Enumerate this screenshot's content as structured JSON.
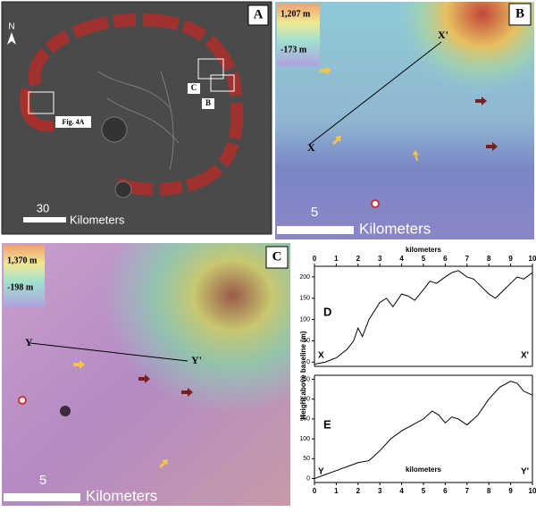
{
  "panels": {
    "a": {
      "label": "A",
      "north": "N",
      "box_c": "C",
      "box_b": "B",
      "fig_ref": "Fig. 4A",
      "scale_value": "30",
      "scale_unit": "Kilometers"
    },
    "b": {
      "label": "B",
      "legend_max": "1,207 m",
      "legend_min": "-173 m",
      "profile_start": "X",
      "profile_end": "X'",
      "scale_value": "5",
      "scale_unit": "Kilometers"
    },
    "c": {
      "label": "C",
      "legend_max": "1,370 m",
      "legend_min": "-198 m",
      "profile_start": "Y",
      "profile_end": "Y'",
      "scale_value": "5",
      "scale_unit": "Kilometers"
    }
  },
  "chart_data": [
    {
      "type": "line",
      "panel_label": "D",
      "start_label": "X",
      "end_label": "X'",
      "xlabel": "kilometers",
      "x_axis_position": "top",
      "color": "#000000",
      "x": [
        0,
        0.5,
        1,
        1.5,
        1.8,
        2.0,
        2.2,
        2.5,
        3.0,
        3.3,
        3.6,
        4.0,
        4.3,
        4.6,
        5.0,
        5.3,
        5.6,
        6.0,
        6.3,
        6.6,
        7.0,
        7.3,
        7.6,
        8.0,
        8.3,
        8.6,
        9.0,
        9.3,
        9.6,
        10
      ],
      "values": [
        -5,
        0,
        10,
        30,
        50,
        80,
        60,
        100,
        140,
        150,
        130,
        160,
        155,
        145,
        170,
        190,
        185,
        200,
        210,
        215,
        200,
        195,
        180,
        160,
        150,
        165,
        185,
        200,
        195,
        210
      ],
      "xlim": [
        0,
        10
      ],
      "xticks": [
        0,
        1,
        2,
        3,
        4,
        5,
        6,
        7,
        8,
        9,
        10
      ],
      "ylim": [
        -10,
        225
      ],
      "yticks": [
        0,
        50,
        100,
        150,
        200
      ]
    },
    {
      "type": "line",
      "panel_label": "E",
      "start_label": "Y",
      "end_label": "Y'",
      "xlabel": "kilometers",
      "x_axis_position": "bottom",
      "color": "#000000",
      "ylabel": "Height above baseline (m)",
      "x": [
        0,
        0.5,
        1,
        1.5,
        2,
        2.5,
        3,
        3.5,
        4,
        4.5,
        5,
        5.4,
        5.7,
        6,
        6.3,
        6.6,
        7,
        7.5,
        8,
        8.5,
        9,
        9.3,
        9.6,
        10
      ],
      "values": [
        0,
        10,
        20,
        30,
        40,
        45,
        70,
        100,
        120,
        135,
        150,
        170,
        160,
        140,
        155,
        150,
        135,
        160,
        200,
        230,
        245,
        240,
        220,
        210
      ],
      "xlim": [
        0,
        10
      ],
      "xticks": [
        0,
        1,
        2,
        3,
        4,
        5,
        6,
        7,
        8,
        9,
        10
      ],
      "ylim": [
        -10,
        260
      ],
      "yticks": [
        0,
        50,
        100,
        150,
        200,
        250
      ]
    }
  ]
}
